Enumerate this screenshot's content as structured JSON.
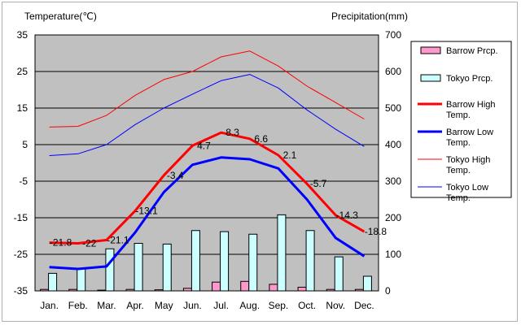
{
  "chart_data": {
    "type": "bar",
    "left_axis_label": "Temperature(℃)",
    "right_axis_label": "Precipitation(mm)",
    "categories": [
      "Jan.",
      "Feb.",
      "Mar.",
      "Apr.",
      "May",
      "Jun.",
      "Jul.",
      "Aug.",
      "Sep.",
      "Oct.",
      "Nov.",
      "Dec."
    ],
    "temp_ylim": [
      -35,
      35
    ],
    "temp_ticks": [
      "35",
      "25",
      "15",
      "5",
      "-5",
      "-15",
      "-25",
      "-35"
    ],
    "prcp_ylim": [
      0,
      700
    ],
    "prcp_ticks": [
      "700",
      "600",
      "500",
      "400",
      "300",
      "200",
      "100",
      "0"
    ],
    "bar_series": [
      {
        "name": "Barrow Prcp.",
        "color": "#ff99cc",
        "values": [
          4,
          4,
          2,
          4,
          3,
          7,
          24,
          26,
          18,
          10,
          4,
          4
        ]
      },
      {
        "name": "Tokyo Prcp.",
        "color": "#ccffff",
        "values": [
          48,
          60,
          115,
          130,
          128,
          165,
          162,
          155,
          208,
          165,
          93,
          40
        ]
      }
    ],
    "line_series": [
      {
        "name": "Barrow High Temp.",
        "color": "#ff0000",
        "width": 3,
        "values": [
          -21.8,
          -22,
          -21.1,
          -13.1,
          -3.4,
          4.7,
          8.3,
          6.6,
          2.1,
          -5.7,
          -14.3,
          -18.8
        ]
      },
      {
        "name": "Barrow Low Temp.",
        "color": "#0000ff",
        "width": 3,
        "values": [
          -28.5,
          -29,
          -28.3,
          -19,
          -8,
          -0.5,
          1.5,
          1.0,
          -1.5,
          -10,
          -20.5,
          -25.5
        ]
      },
      {
        "name": "Tokyo High Temp.",
        "color": "#ff0000",
        "width": 1,
        "values": [
          9.8,
          10,
          13,
          18.5,
          22.8,
          25,
          29,
          30.6,
          26.5,
          21,
          16.5,
          12
        ]
      },
      {
        "name": "Tokyo Low Temp.",
        "color": "#0000ff",
        "width": 1,
        "values": [
          2,
          2.5,
          5,
          10.5,
          15,
          18.8,
          22.5,
          24.2,
          20.5,
          14.5,
          9.2,
          4.5
        ]
      }
    ],
    "data_labels": [
      "-21.8",
      "-22",
      "-21.1",
      "-13.1",
      "-3.4",
      "4.7",
      "8.3",
      "6.6",
      "2.1",
      "-5.7",
      "-14.3",
      "-18.8"
    ],
    "legend_position": "right",
    "legend": {
      "items": [
        {
          "label_lines": [
            "Barrow Prcp."
          ],
          "kind": "bar",
          "color": "#ff99cc"
        },
        {
          "label_lines": [
            "Tokyo Prcp."
          ],
          "kind": "bar",
          "color": "#ccffff"
        },
        {
          "label_lines": [
            "Barrow High",
            "Temp."
          ],
          "kind": "line",
          "color": "#ff0000",
          "width": 3
        },
        {
          "label_lines": [
            "Barrow Low",
            "Temp."
          ],
          "kind": "line",
          "color": "#0000ff",
          "width": 3
        },
        {
          "label_lines": [
            "Tokyo High",
            "Temp."
          ],
          "kind": "line",
          "color": "#ff0000",
          "width": 1
        },
        {
          "label_lines": [
            "Tokyo Low",
            "Temp."
          ],
          "kind": "line",
          "color": "#0000ff",
          "width": 1
        }
      ]
    },
    "plot_background": "#c0c0c0",
    "grid": "horizontal"
  }
}
